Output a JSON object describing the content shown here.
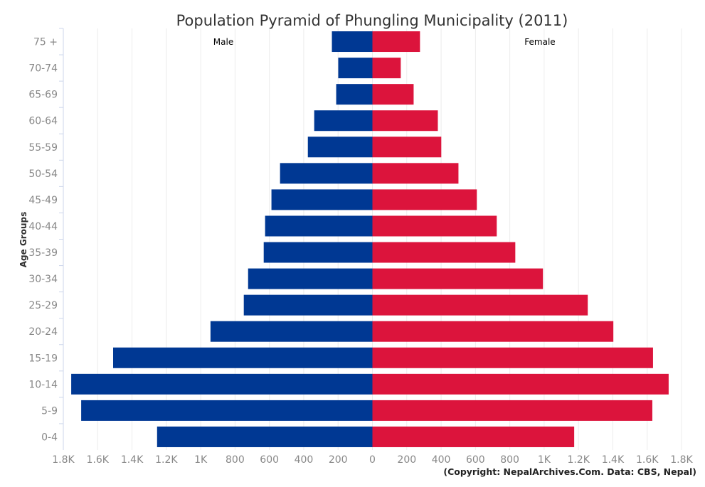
{
  "chart_data": {
    "type": "bar",
    "orientation": "horizontal",
    "title": "Population Pyramid of Phungling Municipality (2011)",
    "ylabel": "Age Groups",
    "xlabel": "",
    "categories": [
      "75 +",
      "70-74",
      "65-69",
      "60-64",
      "55-59",
      "50-54",
      "45-49",
      "40-44",
      "35-39",
      "30-34",
      "25-29",
      "20-24",
      "15-19",
      "10-14",
      "5-9",
      "0-4"
    ],
    "series": [
      {
        "name": "Male",
        "color": "#003893",
        "side": "left",
        "values": [
          236,
          199,
          211,
          339,
          376,
          538,
          588,
          625,
          633,
          724,
          749,
          943,
          1510,
          1754,
          1696,
          1254
        ]
      },
      {
        "name": "Female",
        "color": "#DC143C",
        "side": "right",
        "values": [
          277,
          165,
          240,
          381,
          401,
          501,
          608,
          724,
          832,
          993,
          1254,
          1403,
          1634,
          1725,
          1630,
          1175
        ]
      }
    ],
    "xlim": [
      -1800,
      1800
    ],
    "x_ticks": [
      "1.8K",
      "1.6K",
      "1.4K",
      "1.2K",
      "1K",
      "800",
      "600",
      "400",
      "200",
      "0",
      "200",
      "400",
      "600",
      "800",
      "1K",
      "1.2K",
      "1.4K",
      "1.6K",
      "1.8K"
    ],
    "grid": true,
    "legend": "inline labels at top"
  },
  "credit": "(Copyright: NepalArchives.Com. Data: CBS, Nepal)"
}
